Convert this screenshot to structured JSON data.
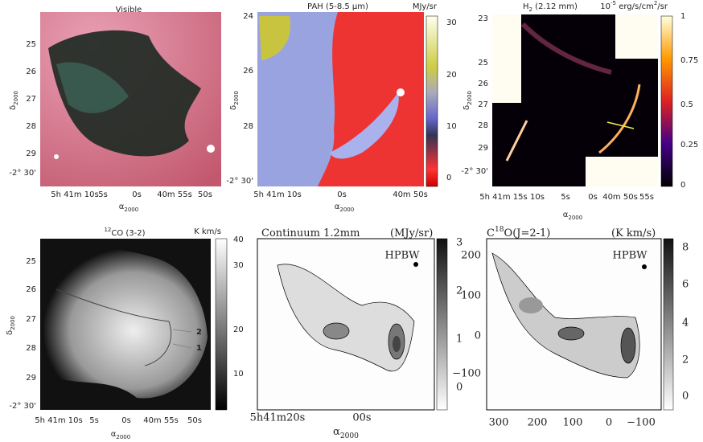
{
  "panels": [
    {
      "title": [
        "Visible"
      ],
      "y_ticks": [
        "25",
        "26",
        "27",
        "28",
        "29",
        "-2° 30'"
      ],
      "x_ticks": [
        "5h 41m 10s",
        "5s",
        "0s",
        "40m 55s",
        "50s"
      ],
      "x_label": [
        "α",
        "2000"
      ],
      "y_label": [
        "δ",
        "2000"
      ]
    },
    {
      "title": [
        "PAH (5-8.5 µm)"
      ],
      "unit": [
        "MJy/sr"
      ],
      "colorbar_ticks": [
        "30",
        "20",
        "10",
        "0"
      ],
      "y_ticks": [
        "24",
        "26",
        "28",
        "-2° 30'"
      ],
      "x_ticks": [
        "5h 41m 10s",
        "0s",
        "40m 50s"
      ],
      "x_label": [
        "α",
        "2000"
      ],
      "y_label": [
        "δ",
        "2000"
      ]
    },
    {
      "title": [
        "H",
        "2",
        " (2.12 mm)"
      ],
      "unit": [
        "10",
        "-5",
        " erg/s/cm",
        "2",
        "/sr"
      ],
      "colorbar_ticks": [
        "1",
        "0.75",
        "0.5",
        "0.25",
        "0"
      ],
      "y_ticks": [
        "23",
        "25",
        "26",
        "27",
        "28",
        "29",
        "-2° 30'"
      ],
      "x_ticks": [
        "5h 41m 15s",
        "10s",
        "5s",
        "0s",
        "40m 50s",
        "55s"
      ],
      "x_label": [
        "α",
        "2000"
      ],
      "y_label": [
        "δ",
        "2000"
      ]
    },
    {
      "title": [
        "12",
        "CO (3-2)"
      ],
      "unit": [
        "K km/s"
      ],
      "colorbar_ticks": [
        "40",
        "30",
        "20",
        "10"
      ],
      "y_ticks": [
        "25",
        "26",
        "27",
        "28",
        "29",
        "-2° 30'"
      ],
      "x_ticks": [
        "5h 41m 10s",
        "5s",
        "0s",
        "40m 55s",
        "50s"
      ],
      "x_label": [
        "α",
        "2000"
      ],
      "y_label": [
        "δ",
        "2000"
      ],
      "annotations": [
        "2",
        "1"
      ]
    },
    {
      "title": [
        "Continuum 1.2mm"
      ],
      "unit": [
        "(MJy/sr)"
      ],
      "colorbar_ticks": [
        "3",
        "2",
        "1",
        "0"
      ],
      "y_ticks": [],
      "x_ticks": [
        "5h41m20s",
        "00s"
      ],
      "x_label": [
        "α",
        "2000"
      ],
      "beam": "HPBW"
    },
    {
      "title": [
        "C",
        "18",
        "O(J=2-1)"
      ],
      "unit": [
        "(K km/s)"
      ],
      "colorbar_ticks": [
        "8",
        "6",
        "4",
        "2",
        "0"
      ],
      "y_ticks": [
        "200",
        "100",
        "0",
        "−100"
      ],
      "x_ticks": [
        "300",
        "200",
        "100",
        "0",
        "−100"
      ],
      "beam": "HPBW"
    }
  ]
}
